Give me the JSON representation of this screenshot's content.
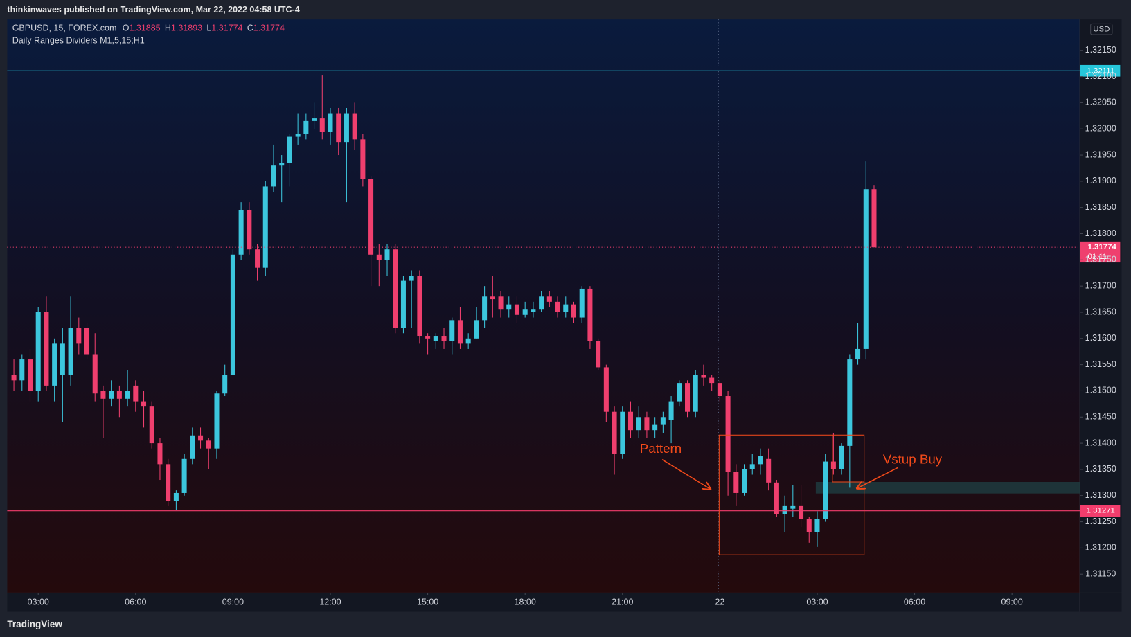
{
  "header": "thinkinwaves published on TradingView.com, Mar 22, 2022 04:58 UTC-4",
  "footer": "TradingView",
  "chart_data": {
    "type": "candlestick",
    "symbol": "GBPUSD, 15, FOREX.com",
    "indicator": "Daily Ranges Dividers M1,5,15;H1",
    "ohlc_labels": [
      "O",
      "H",
      "L",
      "C"
    ],
    "currency": "USD",
    "countdown": "01:11",
    "up_color": "#3cc6dd",
    "down_color": "#ef3f6e",
    "grid": false,
    "x": [
      2.25,
      2.5,
      2.75,
      3,
      3.25,
      3.5,
      3.75,
      4,
      4.25,
      4.5,
      4.75,
      5,
      5.25,
      5.5,
      5.75,
      6,
      6.25,
      6.5,
      6.75,
      7,
      7.25,
      7.5,
      7.75,
      8,
      8.25,
      8.5,
      8.75,
      9,
      9.25,
      9.5,
      9.75,
      10,
      10.25,
      10.5,
      10.75,
      11,
      11.25,
      11.5,
      11.75,
      12,
      12.25,
      12.5,
      12.75,
      13,
      13.25,
      13.5,
      13.75,
      14,
      14.25,
      14.5,
      14.75,
      15,
      15.25,
      15.5,
      15.75,
      16,
      16.25,
      16.5,
      16.75,
      17,
      17.25,
      17.5,
      17.75,
      18,
      18.25,
      18.5,
      18.75,
      19,
      19.25,
      19.5,
      19.75,
      20,
      20.25,
      20.5,
      20.75,
      21,
      21.25,
      21.5,
      21.75,
      22,
      22.25,
      22.5,
      22.75,
      23,
      23.25,
      23.5,
      23.75,
      24,
      24.25,
      24.5,
      24.75,
      25,
      25.25,
      25.5,
      25.75,
      26,
      26.25,
      26.5,
      26.75,
      27,
      27.25,
      27.5,
      27.75,
      28,
      28.25,
      28.5,
      28.75
    ],
    "open": [
      1.3153,
      1.3152,
      1.3156,
      1.315,
      1.3165,
      1.3151,
      1.3153,
      1.3153,
      1.3162,
      1.3162,
      1.3157,
      1.315,
      1.31485,
      1.315,
      1.31485,
      1.3151,
      1.3148,
      1.3147,
      1.314,
      1.3136,
      1.3129,
      1.31305,
      1.3137,
      1.31415,
      1.31405,
      1.3139,
      1.31495,
      1.3153,
      1.3176,
      1.31845,
      1.3177,
      1.31735,
      1.3189,
      1.3193,
      1.31935,
      1.31985,
      1.3199,
      1.32015,
      1.3202,
      1.31995,
      1.3203,
      1.31975,
      1.3203,
      1.3198,
      1.31905,
      1.3176,
      1.3175,
      1.3177,
      1.3162,
      1.3171,
      1.3172,
      1.31605,
      1.31595,
      1.31605,
      1.31595,
      1.31635,
      1.3159,
      1.316,
      1.31635,
      1.3168,
      1.3168,
      1.31655,
      1.31665,
      1.31645,
      1.3165,
      1.31655,
      1.3168,
      1.3167,
      1.3165,
      1.31665,
      1.3164,
      1.31695,
      1.31595,
      1.31545,
      1.3146,
      1.3138,
      1.3146,
      1.31425,
      1.3145,
      1.31425,
      1.31435,
      1.31445,
      1.3148,
      1.31515,
      1.3146,
      1.3153,
      1.31525,
      1.31515,
      1.3149,
      1.31345,
      1.31305,
      1.3135,
      1.3136,
      1.3137,
      1.31325,
      1.31265,
      1.31275,
      1.3128,
      1.31255,
      1.3123,
      1.31255,
      1.31365,
      1.3135,
      1.31395,
      1.3156,
      1.3158,
      1.31885
    ],
    "high": [
      1.3156,
      1.3157,
      1.3158,
      1.3166,
      1.3168,
      1.316,
      1.3162,
      1.3168,
      1.3164,
      1.3163,
      1.3161,
      1.3151,
      1.3152,
      1.3151,
      1.3154,
      1.3152,
      1.315,
      1.3148,
      1.3141,
      1.3137,
      1.3131,
      1.3138,
      1.3143,
      1.3143,
      1.3141,
      1.315,
      1.3155,
      1.3177,
      1.3186,
      1.3186,
      1.3178,
      1.319,
      1.3197,
      1.3195,
      1.3199,
      1.3203,
      1.3203,
      1.3205,
      1.32102,
      1.3204,
      1.3204,
      1.3204,
      1.3205,
      1.3199,
      1.3191,
      1.3178,
      1.3178,
      1.3178,
      1.3172,
      1.3173,
      1.3173,
      1.3161,
      1.3161,
      1.3162,
      1.3164,
      1.3166,
      1.3161,
      1.3166,
      1.317,
      1.3172,
      1.3169,
      1.3168,
      1.3168,
      1.3167,
      1.3167,
      1.3169,
      1.3169,
      1.3168,
      1.3168,
      1.3167,
      1.317,
      1.317,
      1.316,
      1.3155,
      1.3147,
      1.3147,
      1.3148,
      1.3147,
      1.3146,
      1.3145,
      1.3146,
      1.3149,
      1.3152,
      1.3152,
      1.3154,
      1.3155,
      1.3153,
      1.3152,
      1.315,
      1.3136,
      1.3136,
      1.3138,
      1.3139,
      1.3139,
      1.3133,
      1.313,
      1.3132,
      1.3132,
      1.3126,
      1.3127,
      1.3138,
      1.3142,
      1.314,
      1.3157,
      1.3163,
      1.31938,
      1.31893
    ],
    "low": [
      1.315,
      1.315,
      1.3148,
      1.3148,
      1.315,
      1.3148,
      1.3144,
      1.3151,
      1.3157,
      1.3156,
      1.3148,
      1.3141,
      1.3147,
      1.3145,
      1.3147,
      1.3146,
      1.3143,
      1.3139,
      1.3133,
      1.3128,
      1.31273,
      1.313,
      1.3136,
      1.3139,
      1.3135,
      1.3137,
      1.3149,
      1.3153,
      1.3175,
      1.3176,
      1.3171,
      1.3172,
      1.3188,
      1.3186,
      1.3189,
      1.3197,
      1.3198,
      1.32,
      1.3198,
      1.3197,
      1.3195,
      1.3186,
      1.3196,
      1.3189,
      1.317,
      1.317,
      1.3172,
      1.3161,
      1.3161,
      1.3162,
      1.3159,
      1.3157,
      1.3158,
      1.3158,
      1.3157,
      1.3158,
      1.3158,
      1.316,
      1.3162,
      1.3164,
      1.3164,
      1.3164,
      1.3163,
      1.3164,
      1.3164,
      1.3165,
      1.3166,
      1.3164,
      1.3164,
      1.3163,
      1.3163,
      1.3158,
      1.3154,
      1.3144,
      1.3134,
      1.3137,
      1.3141,
      1.3141,
      1.3141,
      1.3141,
      1.3142,
      1.314,
      1.3147,
      1.3145,
      1.3145,
      1.3151,
      1.315,
      1.3148,
      1.313,
      1.3128,
      1.313,
      1.3134,
      1.3134,
      1.3131,
      1.3126,
      1.3123,
      1.3126,
      1.3124,
      1.3121,
      1.31202,
      1.3125,
      1.3134,
      1.3134,
      1.31315,
      1.3155,
      1.3156,
      1.31774
    ],
    "close": [
      1.3152,
      1.3156,
      1.315,
      1.3165,
      1.3151,
      1.3159,
      1.3159,
      1.3162,
      1.3159,
      1.3157,
      1.31495,
      1.31485,
      1.315,
      1.31485,
      1.315,
      1.3148,
      1.3147,
      1.314,
      1.3136,
      1.3129,
      1.31305,
      1.3137,
      1.31415,
      1.31405,
      1.3139,
      1.31495,
      1.3153,
      1.3176,
      1.31845,
      1.3177,
      1.31735,
      1.3189,
      1.3193,
      1.31935,
      1.31985,
      1.3199,
      1.32015,
      1.3202,
      1.31995,
      1.3203,
      1.31975,
      1.3203,
      1.3198,
      1.31905,
      1.3176,
      1.3175,
      1.3177,
      1.3162,
      1.3171,
      1.3172,
      1.31605,
      1.316,
      1.31605,
      1.31595,
      1.31635,
      1.3159,
      1.316,
      1.31635,
      1.3168,
      1.31675,
      1.31655,
      1.31665,
      1.31645,
      1.31655,
      1.31655,
      1.3168,
      1.3167,
      1.3165,
      1.31665,
      1.3164,
      1.31695,
      1.31595,
      1.31545,
      1.3146,
      1.3138,
      1.3146,
      1.31425,
      1.3145,
      1.31425,
      1.31435,
      1.3145,
      1.3148,
      1.31515,
      1.3146,
      1.3153,
      1.31525,
      1.31515,
      1.3149,
      1.31345,
      1.31305,
      1.3135,
      1.3136,
      1.31375,
      1.31325,
      1.31265,
      1.3128,
      1.3128,
      1.31255,
      1.3123,
      1.31255,
      1.31365,
      1.3135,
      1.31395,
      1.3156,
      1.3158,
      1.31885,
      1.31774
    ],
    "xlim": [
      2.044,
      35.089
    ],
    "xticks": [
      {
        "value": 3,
        "label": "03:00"
      },
      {
        "value": 6,
        "label": "06:00"
      },
      {
        "value": 9,
        "label": "09:00"
      },
      {
        "value": 12,
        "label": "12:00"
      },
      {
        "value": 15,
        "label": "15:00"
      },
      {
        "value": 18,
        "label": "18:00"
      },
      {
        "value": 21,
        "label": "21:00"
      },
      {
        "value": 24,
        "label": "22"
      },
      {
        "value": 27,
        "label": "03:00"
      },
      {
        "value": 30,
        "label": "06:00"
      },
      {
        "value": 33,
        "label": "09:00"
      }
    ],
    "ylim": [
      1.31114,
      1.32209
    ],
    "yticks": [
      {
        "value": 1.3115,
        "label": "1.31150"
      },
      {
        "value": 1.312,
        "label": "1.31200"
      },
      {
        "value": 1.3125,
        "label": "1.31250"
      },
      {
        "value": 1.313,
        "label": "1.31300"
      },
      {
        "value": 1.3135,
        "label": "1.31350"
      },
      {
        "value": 1.314,
        "label": "1.31400"
      },
      {
        "value": 1.3145,
        "label": "1.31450"
      },
      {
        "value": 1.315,
        "label": "1.31500"
      },
      {
        "value": 1.3155,
        "label": "1.31550"
      },
      {
        "value": 1.316,
        "label": "1.31600"
      },
      {
        "value": 1.3165,
        "label": "1.31650"
      },
      {
        "value": 1.317,
        "label": "1.31700"
      },
      {
        "value": 1.3175,
        "label": "1.31750"
      },
      {
        "value": 1.318,
        "label": "1.31800"
      },
      {
        "value": 1.3185,
        "label": "1.31850"
      },
      {
        "value": 1.319,
        "label": "1.31900"
      },
      {
        "value": 1.3195,
        "label": "1.31950"
      },
      {
        "value": 1.32,
        "label": "1.32000"
      },
      {
        "value": 1.3205,
        "label": "1.32050"
      },
      {
        "value": 1.321,
        "label": "1.32100"
      },
      {
        "value": 1.3215,
        "label": "1.32150"
      }
    ],
    "price_lines": [
      {
        "value": 1.32111,
        "color": "#26c6da"
      },
      {
        "value": 1.31271,
        "color": "#f23d6d"
      }
    ],
    "annotations": [
      "Pattern",
      "Vstup Buy"
    ]
  }
}
